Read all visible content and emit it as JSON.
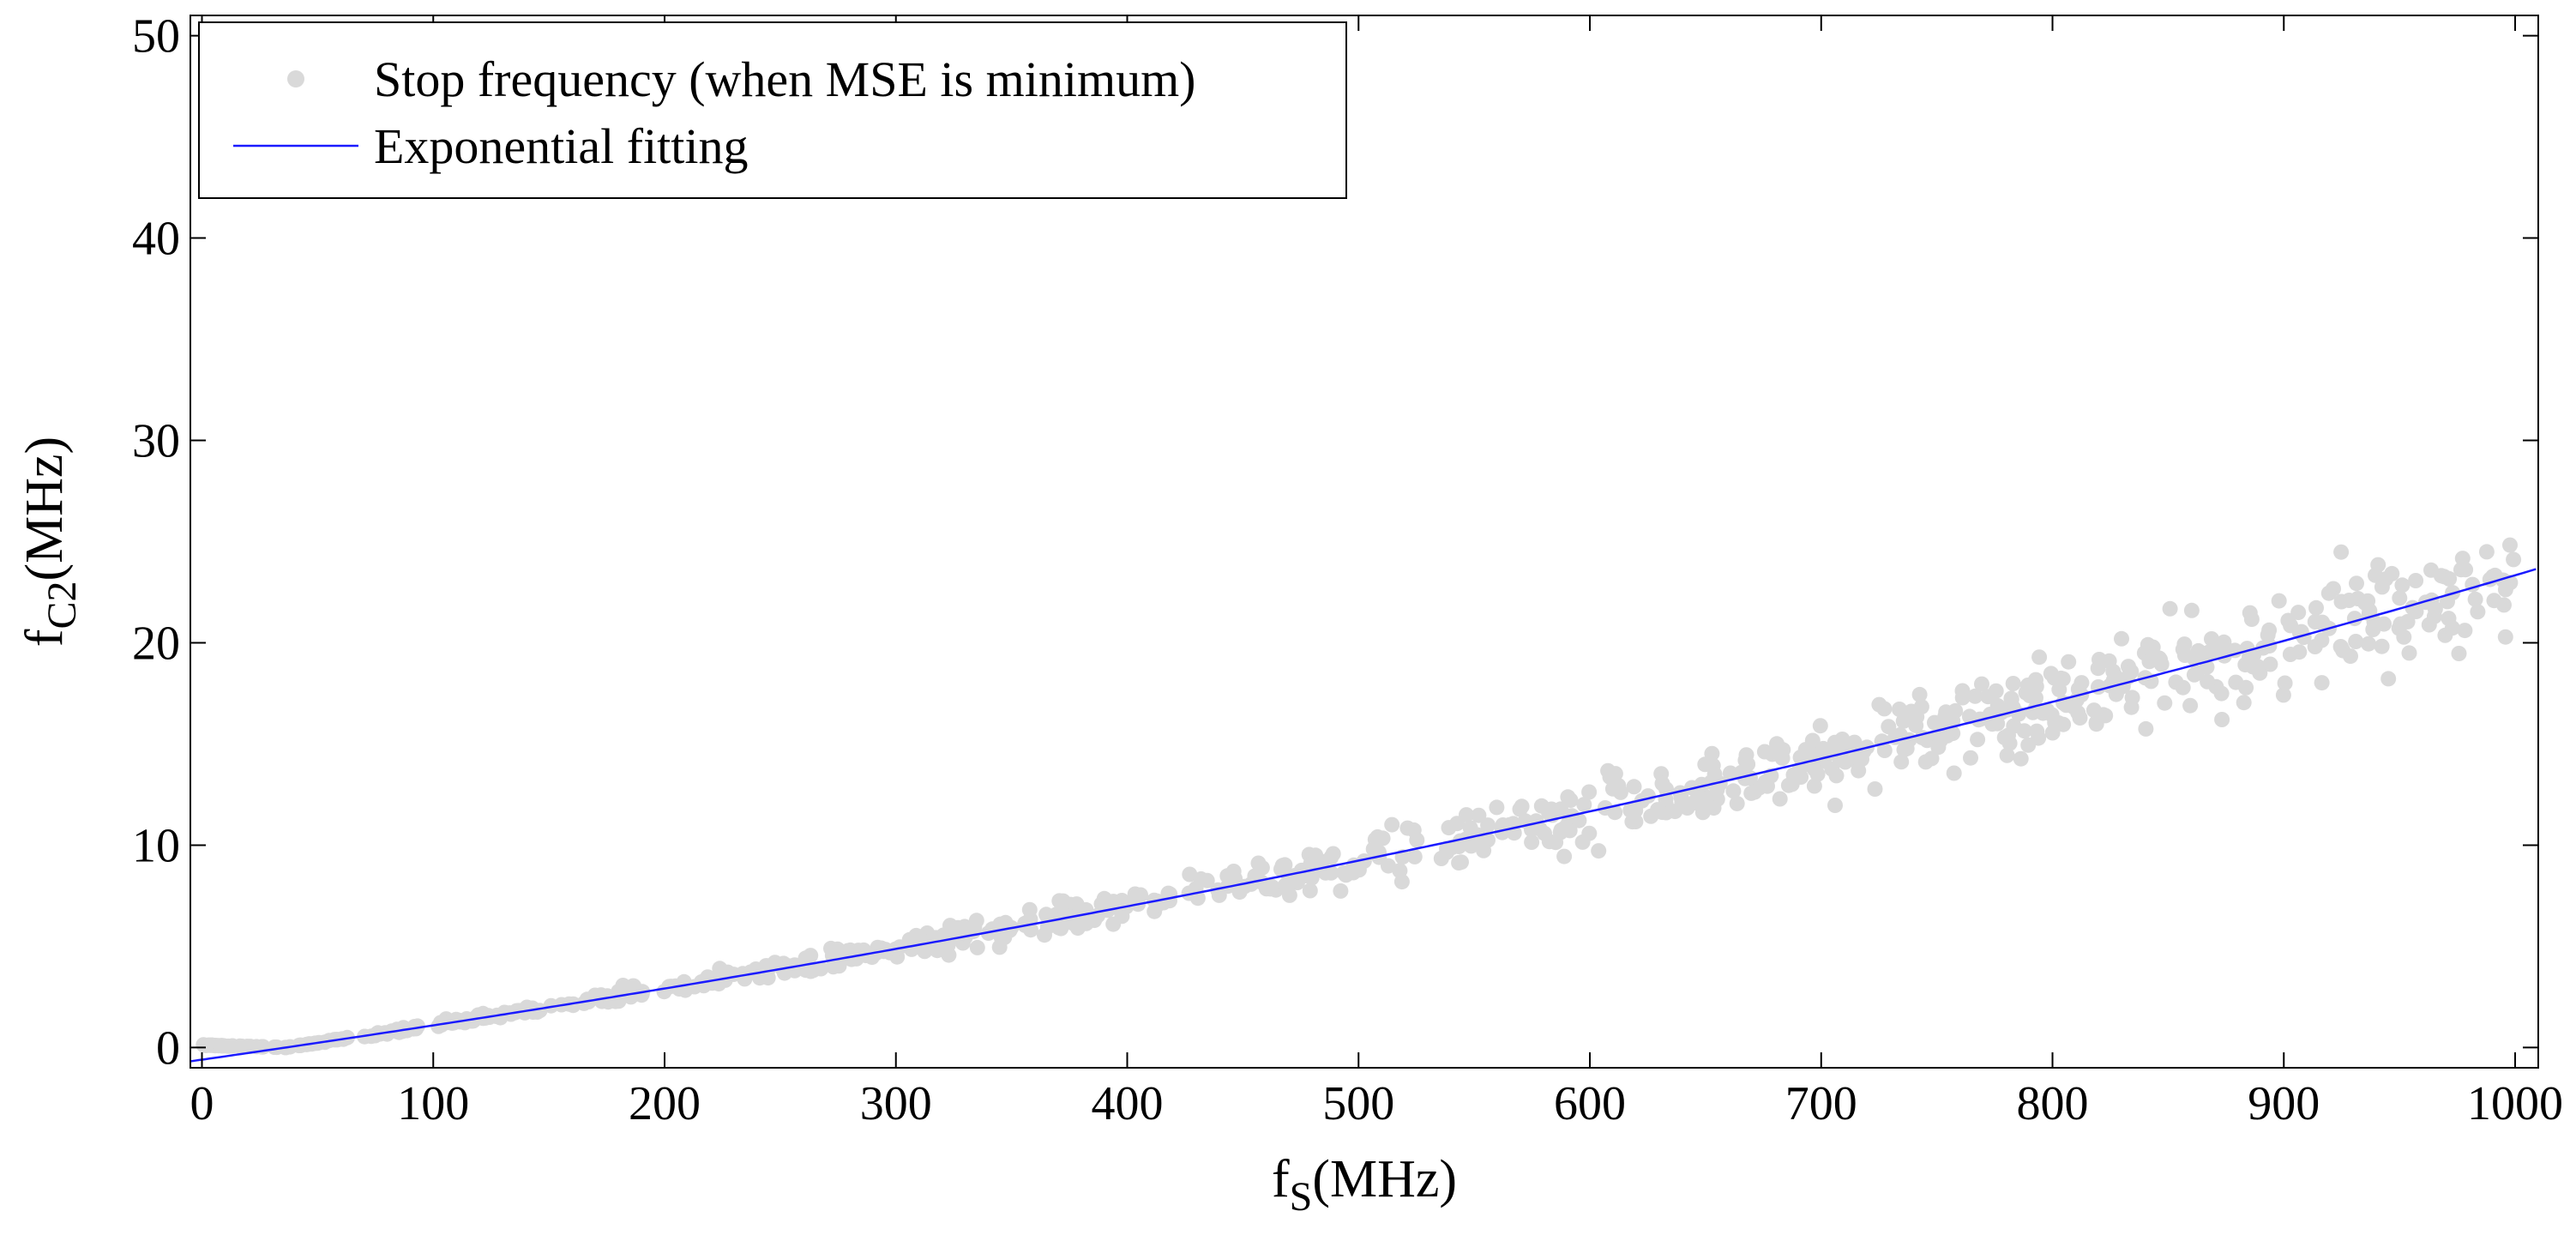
{
  "chart_data": {
    "type": "scatter",
    "title": "",
    "xlabel": {
      "main": "f",
      "sub": "S",
      "unit": "(MHz)"
    },
    "ylabel": {
      "main": "f",
      "sub": "C2",
      "unit": "(MHz)"
    },
    "xlim": [
      -5,
      1010
    ],
    "ylim": [
      -1,
      51
    ],
    "xticks": [
      0,
      100,
      200,
      300,
      400,
      500,
      600,
      700,
      800,
      900,
      1000
    ],
    "yticks": [
      0,
      10,
      20,
      30,
      40,
      50
    ],
    "xtick_labels": [
      "0",
      "100",
      "200",
      "300",
      "400",
      "500",
      "600",
      "700",
      "800",
      "900",
      "1000"
    ],
    "ytick_labels": [
      "0",
      "10",
      "20",
      "30",
      "40",
      "50"
    ],
    "grid": false,
    "legend_position": "top-left",
    "series": [
      {
        "name": "Stop frequency (when MSE is minimum)",
        "kind": "scatter",
        "color": "#d9d9d9",
        "x_range": [
          0,
          1000
        ],
        "count": 900,
        "noise_fraction": 0.06,
        "note": "points scatter around the exponential fit"
      },
      {
        "name": "Exponential fitting",
        "kind": "line",
        "color": "#1a1aff",
        "model": {
          "a": 22.7,
          "b": 0.00072,
          "c": -23.3
        },
        "formula": "y = a*exp(b*x) + c"
      }
    ],
    "legend": [
      {
        "label": "Stop frequency (when MSE is minimum)",
        "marker": "dot",
        "color": "#d9d9d9"
      },
      {
        "label": "Exponential fitting",
        "marker": "line",
        "color": "#1a1aff"
      }
    ]
  }
}
